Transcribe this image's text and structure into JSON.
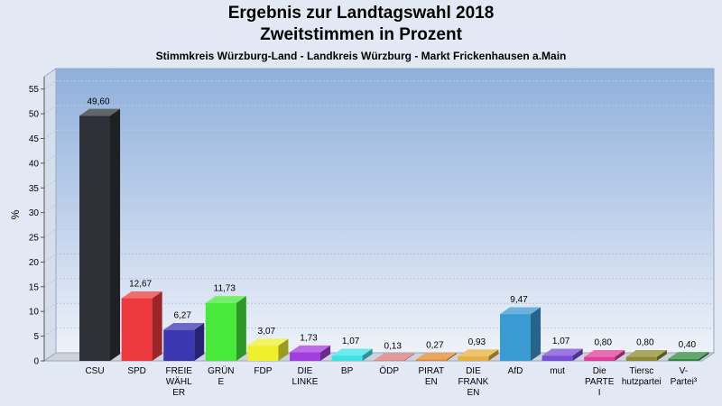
{
  "chart_data": {
    "type": "bar",
    "title": "Ergebnis zur Landtagswahl 2018",
    "subtitle": "Zweitstimmen in Prozent",
    "subsubtitle": "Stimmkreis Würzburg-Land - Landkreis Würzburg - Markt Frickenhausen a.Main",
    "ylabel": "%",
    "ylim": [
      0,
      57.5
    ],
    "yticks": [
      "0",
      "5",
      "10",
      "15",
      "20",
      "25",
      "30",
      "35",
      "40",
      "45",
      "50",
      "55"
    ],
    "categories": [
      [
        "CSU"
      ],
      [
        "SPD"
      ],
      [
        "FREIE",
        "WÄHL",
        "ER"
      ],
      [
        "GRÜN",
        "E"
      ],
      [
        "FDP"
      ],
      [
        "DIE",
        "LINKE"
      ],
      [
        "BP"
      ],
      [
        "ÖDP"
      ],
      [
        "PIRAT",
        "EN"
      ],
      [
        "DIE",
        "FRANK",
        "EN"
      ],
      [
        "AfD"
      ],
      [
        "mut"
      ],
      [
        "Die",
        "PARTE",
        "I"
      ],
      [
        "Tiersc",
        "hutzpartei"
      ],
      [
        "V-",
        "Partei³"
      ]
    ],
    "values": [
      49.6,
      12.67,
      6.27,
      11.73,
      3.07,
      1.73,
      1.07,
      0.13,
      0.27,
      0.93,
      9.47,
      1.07,
      0.8,
      0.8,
      0.4
    ],
    "value_labels": [
      "49,60",
      "12,67",
      "6,27",
      "11,73",
      "3,07",
      "1,73",
      "1,07",
      "0,13",
      "0,27",
      "0,93",
      "9,47",
      "1,07",
      "0,80",
      "0,80",
      "0,40"
    ],
    "colors": [
      "#2e3138",
      "#ee3a3e",
      "#3a37b0",
      "#47ea3a",
      "#efef2e",
      "#a43ddd",
      "#3ee3ea",
      "#d97777",
      "#e38a2e",
      "#e8b03e",
      "#3a9ad2",
      "#7a4ed6",
      "#e03e9a",
      "#8e8a2e",
      "#2e8a3a"
    ],
    "grid": true
  }
}
